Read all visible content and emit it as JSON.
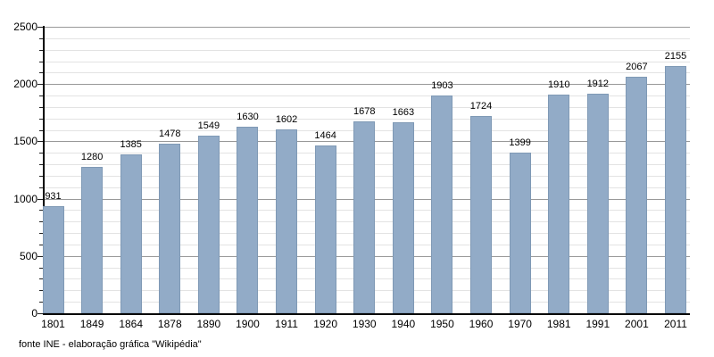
{
  "chart_data": {
    "type": "bar",
    "title": "",
    "xlabel": "",
    "ylabel": "",
    "categories": [
      "1801",
      "1849",
      "1864",
      "1878",
      "1890",
      "1900",
      "1911",
      "1920",
      "1930",
      "1940",
      "1950",
      "1960",
      "1970",
      "1981",
      "1991",
      "2001",
      "2011"
    ],
    "values": [
      931,
      1280,
      1385,
      1478,
      1549,
      1630,
      1602,
      1464,
      1678,
      1663,
      1903,
      1724,
      1399,
      1910,
      1912,
      2067,
      2155
    ],
    "ylim": [
      0,
      2500
    ],
    "ytick_labels": [
      "0",
      "500",
      "1000",
      "1500",
      "2000",
      "2500"
    ],
    "y_major_step": 500,
    "y_minor_step": 100,
    "grid": "on",
    "legend_position": "none",
    "value_labels_shown": true,
    "bar_color": "#92abc7",
    "bar_border_color": "#7f99b5",
    "major_grid_color": "#999999",
    "minor_grid_color": "#e3e3e3",
    "axis_color": "#000000"
  },
  "footer": {
    "source_text": "fonte INE - elaboração gráfica \"Wikipédia\""
  }
}
